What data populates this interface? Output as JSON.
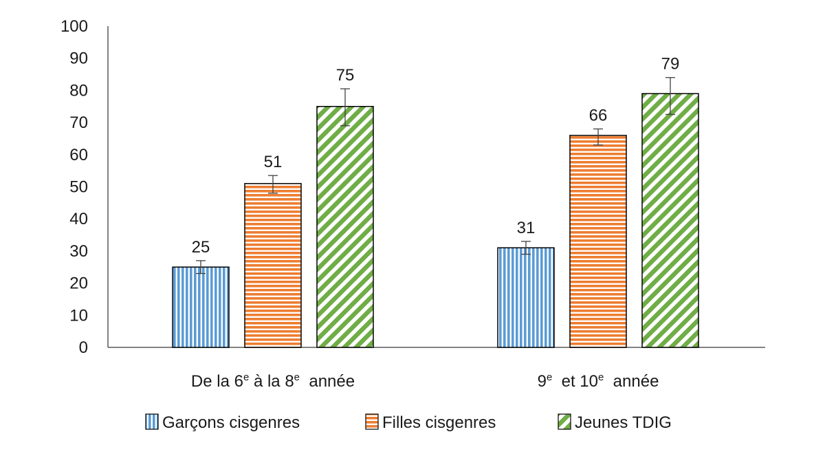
{
  "chart_data": {
    "type": "bar",
    "title": "",
    "xlabel": "",
    "ylabel": "",
    "ylim": [
      0,
      100
    ],
    "yticks": [
      0,
      10,
      20,
      30,
      40,
      50,
      60,
      70,
      80,
      90,
      100
    ],
    "grid": false,
    "legend_position": "bottom",
    "categories": [
      {
        "parts": [
          {
            "text": "De la 6"
          },
          {
            "text": "e",
            "sup": true
          },
          {
            "text": " à la 8"
          },
          {
            "text": "e",
            "sup": true
          },
          {
            "text": "  année"
          }
        ]
      },
      {
        "parts": [
          {
            "text": "9"
          },
          {
            "text": "e",
            "sup": true
          },
          {
            "text": "  et 10"
          },
          {
            "text": "e",
            "sup": true
          },
          {
            "text": "  année"
          }
        ]
      }
    ],
    "series": [
      {
        "name": "Garçons cisgenres",
        "pattern": "vertical-stripes",
        "color": "#5b9bd5",
        "values": [
          25,
          31
        ],
        "error_low": [
          23,
          29
        ],
        "error_high": [
          27,
          33
        ]
      },
      {
        "name": "Filles cisgenres",
        "pattern": "horizontal-stripes",
        "color": "#ed7d31",
        "values": [
          51,
          66
        ],
        "error_low": [
          48,
          63
        ],
        "error_high": [
          53.5,
          68
        ]
      },
      {
        "name": "Jeunes TDIG",
        "pattern": "diagonal-stripes",
        "color": "#70ad47",
        "values": [
          75,
          79
        ],
        "error_low": [
          69,
          72.5
        ],
        "error_high": [
          80.5,
          84
        ]
      }
    ]
  }
}
